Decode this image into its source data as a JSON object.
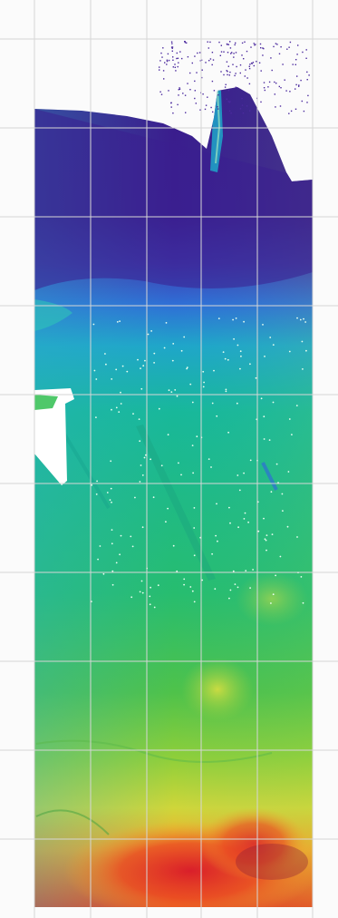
{
  "map": {
    "colors": {
      "background": "#fbfbfb",
      "grid_line": "#d6d6d6",
      "colormap": [
        "#3b1f8f",
        "#3f3cb0",
        "#2f6fd6",
        "#1fa6c9",
        "#18b89a",
        "#27bd6f",
        "#4fc24a",
        "#8fcf3a",
        "#cfd63a",
        "#f2a72b",
        "#ea4a22",
        "#d8192a"
      ],
      "survey_gap": "#ffffff",
      "sounding_point": "#e9fff0",
      "noise_point": "#4b2a9e"
    },
    "grid_visible": true,
    "legend_visible": false,
    "icons": [
      "grid-overlay-icon"
    ]
  }
}
